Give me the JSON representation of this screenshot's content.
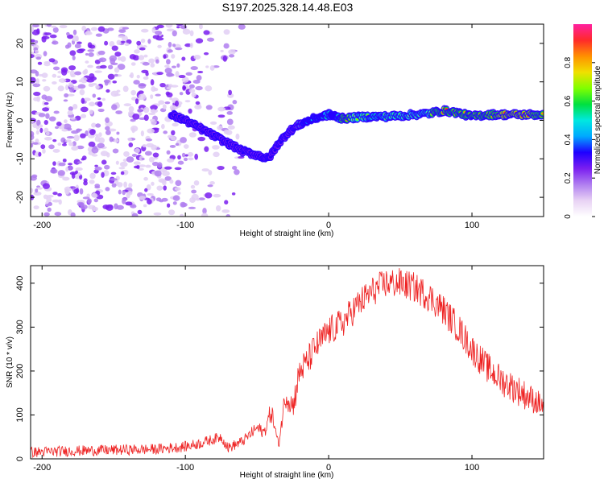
{
  "figure": {
    "title": "S197.2025.328.14.48.E03"
  },
  "colors": {
    "background": "#ffffff",
    "axis": "#000000",
    "snr_line": "#ee2222",
    "colormap": [
      "#ffffff",
      "#e8d2f4",
      "#b07ef0",
      "#7a1ef0",
      "#1e00ff",
      "#00a8ff",
      "#00e8e0",
      "#00e040",
      "#80ff00",
      "#f0e000",
      "#ff9000",
      "#ff2a2a",
      "#ff20a0"
    ]
  },
  "chart_data": [
    {
      "type": "heatmap",
      "name": "spectrogram",
      "title": "S197.2025.328.14.48.E03",
      "xlabel": "Height of straight line (km)",
      "ylabel": "Frequency (Hz)",
      "xlim": [
        -208,
        150
      ],
      "ylim": [
        -25,
        25
      ],
      "xticks": [
        -200,
        -100,
        0,
        100
      ],
      "yticks": [
        -20,
        -10,
        0,
        10,
        20
      ],
      "colorbar": {
        "label": "Normalized spectral amplitude",
        "range": [
          0,
          1
        ],
        "ticks": [
          0,
          0.2,
          0.4,
          0.6,
          0.8
        ]
      },
      "noise_region": {
        "x_range": [
          -208,
          -60
        ],
        "freq_range": [
          -25,
          25
        ],
        "amplitude": 0.12
      },
      "ridge": [
        {
          "x": -110,
          "f": 1.5,
          "a": 0.3
        },
        {
          "x": -100,
          "f": 0.0,
          "a": 0.35
        },
        {
          "x": -90,
          "f": -2.0,
          "a": 0.35
        },
        {
          "x": -80,
          "f": -4.0,
          "a": 0.3
        },
        {
          "x": -70,
          "f": -6.0,
          "a": 0.3
        },
        {
          "x": -60,
          "f": -8.0,
          "a": 0.3
        },
        {
          "x": -50,
          "f": -9.0,
          "a": 0.3
        },
        {
          "x": -42,
          "f": -10.0,
          "a": 0.3
        },
        {
          "x": -35,
          "f": -6.0,
          "a": 0.35
        },
        {
          "x": -28,
          "f": -3.0,
          "a": 0.35
        },
        {
          "x": -20,
          "f": -1.0,
          "a": 0.4
        },
        {
          "x": -10,
          "f": 0.5,
          "a": 0.5
        },
        {
          "x": 0,
          "f": 1.5,
          "a": 0.55
        },
        {
          "x": 5,
          "f": 1.0,
          "a": 0.5
        },
        {
          "x": 10,
          "f": 0.5,
          "a": 0.85
        },
        {
          "x": 20,
          "f": 0.8,
          "a": 0.7
        },
        {
          "x": 30,
          "f": 1.0,
          "a": 0.6
        },
        {
          "x": 40,
          "f": 1.0,
          "a": 0.65
        },
        {
          "x": 50,
          "f": 1.2,
          "a": 0.7
        },
        {
          "x": 60,
          "f": 1.5,
          "a": 0.75
        },
        {
          "x": 70,
          "f": 1.8,
          "a": 0.75
        },
        {
          "x": 80,
          "f": 2.5,
          "a": 0.9
        },
        {
          "x": 90,
          "f": 2.0,
          "a": 0.8
        },
        {
          "x": 100,
          "f": 1.0,
          "a": 0.8
        },
        {
          "x": 110,
          "f": 1.5,
          "a": 0.85
        },
        {
          "x": 120,
          "f": 1.5,
          "a": 0.9
        },
        {
          "x": 130,
          "f": 1.5,
          "a": 0.9
        },
        {
          "x": 140,
          "f": 1.5,
          "a": 0.9
        },
        {
          "x": 150,
          "f": 1.5,
          "a": 0.85
        }
      ]
    },
    {
      "type": "line",
      "name": "snr",
      "xlabel": "Height of straight line (km)",
      "ylabel": "SNR (10 * v/v)",
      "xlim": [
        -208,
        150
      ],
      "ylim": [
        0,
        440
      ],
      "xticks": [
        -200,
        -100,
        0,
        100
      ],
      "yticks": [
        0,
        100,
        200,
        300,
        400
      ],
      "series": [
        {
          "name": "SNR",
          "x": [
            -208,
            -180,
            -150,
            -120,
            -100,
            -90,
            -80,
            -75,
            -70,
            -60,
            -50,
            -45,
            -40,
            -35,
            -30,
            -25,
            -20,
            -15,
            -10,
            0,
            10,
            20,
            30,
            40,
            50,
            60,
            70,
            80,
            90,
            100,
            110,
            120,
            130,
            140,
            150
          ],
          "values": [
            15,
            18,
            20,
            22,
            28,
            35,
            45,
            50,
            25,
            40,
            70,
            60,
            110,
            30,
            150,
            120,
            200,
            220,
            250,
            290,
            310,
            350,
            380,
            400,
            400,
            390,
            370,
            340,
            300,
            250,
            210,
            180,
            160,
            140,
            120
          ],
          "noise_amplitude": 35
        }
      ]
    }
  ]
}
